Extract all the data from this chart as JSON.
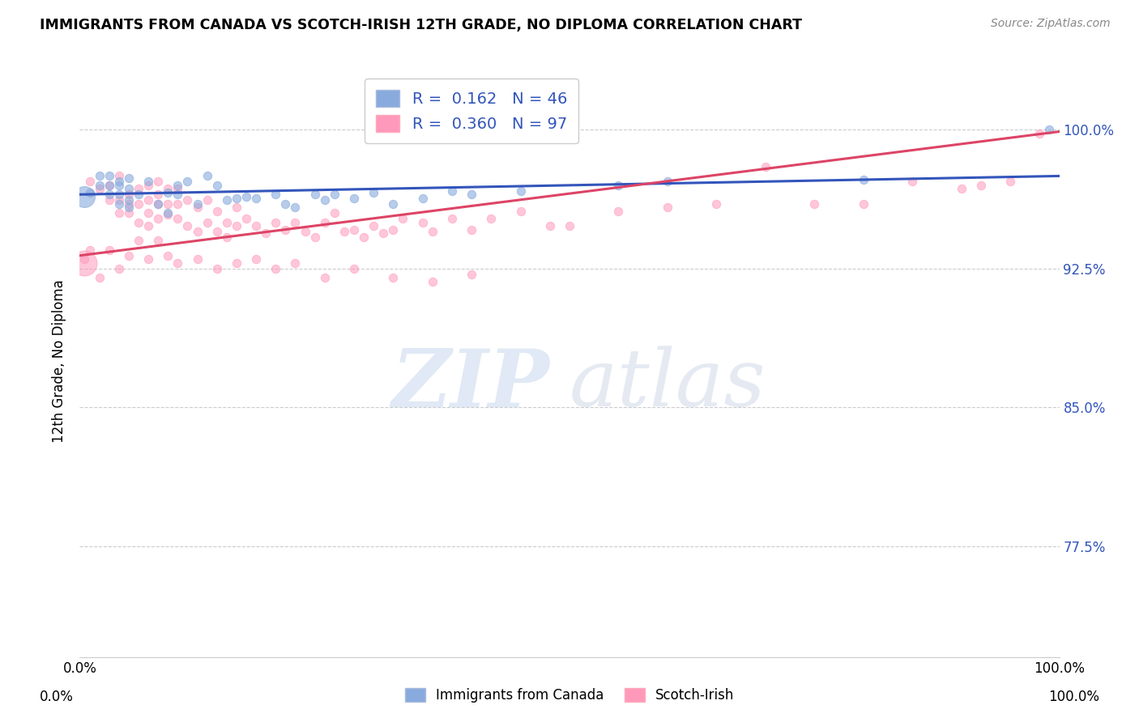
{
  "title": "IMMIGRANTS FROM CANADA VS SCOTCH-IRISH 12TH GRADE, NO DIPLOMA CORRELATION CHART",
  "source": "Source: ZipAtlas.com",
  "ylabel": "12th Grade, No Diploma",
  "ytick_labels": [
    "100.0%",
    "92.5%",
    "85.0%",
    "77.5%"
  ],
  "ytick_values": [
    1.0,
    0.925,
    0.85,
    0.775
  ],
  "xlim": [
    0.0,
    1.0
  ],
  "ylim": [
    0.715,
    1.035
  ],
  "legend_R1": "R =  0.162",
  "legend_N1": "N = 46",
  "legend_R2": "R =  0.360",
  "legend_N2": "N = 97",
  "color_blue": "#88AADD",
  "color_pink": "#FF99BB",
  "color_blue_line": "#3355BB",
  "color_pink_line": "#DD4466",
  "color_ytick": "#3355BB",
  "watermark_zip": "ZIP",
  "watermark_atlas": "atlas",
  "blue_scatter_x": [
    0.01,
    0.02,
    0.02,
    0.03,
    0.03,
    0.03,
    0.04,
    0.04,
    0.04,
    0.04,
    0.05,
    0.05,
    0.05,
    0.05,
    0.06,
    0.07,
    0.08,
    0.09,
    0.09,
    0.1,
    0.1,
    0.11,
    0.12,
    0.13,
    0.14,
    0.15,
    0.16,
    0.17,
    0.18,
    0.2,
    0.21,
    0.22,
    0.24,
    0.25,
    0.26,
    0.28,
    0.3,
    0.32,
    0.35,
    0.38,
    0.4,
    0.45,
    0.55,
    0.6,
    0.8,
    0.99
  ],
  "blue_scatter_y": [
    0.966,
    0.975,
    0.97,
    0.975,
    0.97,
    0.965,
    0.972,
    0.965,
    0.96,
    0.97,
    0.968,
    0.962,
    0.958,
    0.974,
    0.965,
    0.972,
    0.96,
    0.966,
    0.955,
    0.97,
    0.965,
    0.972,
    0.96,
    0.975,
    0.97,
    0.962,
    0.963,
    0.964,
    0.963,
    0.965,
    0.96,
    0.958,
    0.965,
    0.962,
    0.965,
    0.963,
    0.966,
    0.96,
    0.963,
    0.967,
    0.965,
    0.967,
    0.97,
    0.972,
    0.973,
    1.0
  ],
  "blue_scatter_large_x": [
    0.005
  ],
  "blue_scatter_large_y": [
    0.964
  ],
  "blue_scatter_large_s": 350,
  "pink_scatter_x": [
    0.01,
    0.02,
    0.03,
    0.03,
    0.04,
    0.04,
    0.04,
    0.05,
    0.05,
    0.05,
    0.06,
    0.06,
    0.06,
    0.07,
    0.07,
    0.07,
    0.07,
    0.08,
    0.08,
    0.08,
    0.08,
    0.09,
    0.09,
    0.09,
    0.1,
    0.1,
    0.1,
    0.11,
    0.11,
    0.12,
    0.12,
    0.13,
    0.13,
    0.14,
    0.14,
    0.15,
    0.15,
    0.16,
    0.16,
    0.17,
    0.18,
    0.19,
    0.2,
    0.21,
    0.22,
    0.23,
    0.24,
    0.25,
    0.26,
    0.27,
    0.28,
    0.29,
    0.3,
    0.31,
    0.32,
    0.33,
    0.35,
    0.36,
    0.38,
    0.4,
    0.42,
    0.45,
    0.48,
    0.5,
    0.55,
    0.6,
    0.65,
    0.7,
    0.75,
    0.8,
    0.85,
    0.9,
    0.92,
    0.95,
    0.98,
    0.005,
    0.01,
    0.02,
    0.03,
    0.04,
    0.05,
    0.06,
    0.07,
    0.08,
    0.09,
    0.1,
    0.12,
    0.14,
    0.16,
    0.18,
    0.2,
    0.22,
    0.25,
    0.28,
    0.32,
    0.36,
    0.4
  ],
  "pink_scatter_y": [
    0.972,
    0.968,
    0.97,
    0.962,
    0.962,
    0.955,
    0.975,
    0.965,
    0.96,
    0.955,
    0.95,
    0.96,
    0.968,
    0.955,
    0.948,
    0.962,
    0.97,
    0.952,
    0.96,
    0.965,
    0.972,
    0.954,
    0.96,
    0.968,
    0.952,
    0.96,
    0.968,
    0.948,
    0.962,
    0.945,
    0.958,
    0.95,
    0.962,
    0.945,
    0.956,
    0.95,
    0.942,
    0.948,
    0.958,
    0.952,
    0.948,
    0.944,
    0.95,
    0.946,
    0.95,
    0.945,
    0.942,
    0.95,
    0.955,
    0.945,
    0.946,
    0.942,
    0.948,
    0.944,
    0.946,
    0.952,
    0.95,
    0.945,
    0.952,
    0.946,
    0.952,
    0.956,
    0.948,
    0.948,
    0.956,
    0.958,
    0.96,
    0.98,
    0.96,
    0.96,
    0.972,
    0.968,
    0.97,
    0.972,
    0.998,
    0.93,
    0.935,
    0.92,
    0.935,
    0.925,
    0.932,
    0.94,
    0.93,
    0.94,
    0.932,
    0.928,
    0.93,
    0.925,
    0.928,
    0.93,
    0.925,
    0.928,
    0.92,
    0.925,
    0.92,
    0.918,
    0.922
  ],
  "pink_scatter_large_x": [
    0.005
  ],
  "pink_scatter_large_y": [
    0.928
  ],
  "pink_scatter_large_s": 500,
  "blue_line_x": [
    0.0,
    1.0
  ],
  "blue_line_y": [
    0.965,
    0.975
  ],
  "pink_line_x": [
    0.0,
    1.0
  ],
  "pink_line_y": [
    0.932,
    0.999
  ],
  "dot_size": 55
}
